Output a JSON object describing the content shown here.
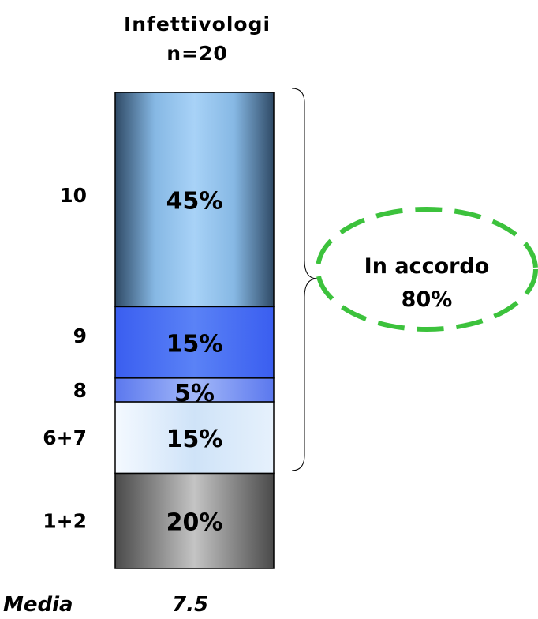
{
  "chart_data": {
    "type": "bar",
    "stacked": true,
    "title": "Infettivologi",
    "subtitle": "n=20",
    "categories": [
      "Infettivologi"
    ],
    "series": [
      {
        "name": "1+2",
        "values": [
          20
        ],
        "label": "20%",
        "color": "#8a8a8a"
      },
      {
        "name": "6+7",
        "values": [
          15
        ],
        "label": "15%",
        "color": "#d4e6f8"
      },
      {
        "name": "8",
        "values": [
          5
        ],
        "label": "5%",
        "color": "#6f8cf0"
      },
      {
        "name": "9",
        "values": [
          15
        ],
        "label": "15%",
        "color": "#4c72f2"
      },
      {
        "name": "10",
        "values": [
          45
        ],
        "label": "45%",
        "color": "#6f9fcc"
      }
    ],
    "ylim": [
      0,
      100
    ],
    "annotation": {
      "text_line1": "In accordo",
      "text_line2": "80%",
      "color": "#3cc23c"
    },
    "footer": {
      "label": "Media",
      "value": "7.5"
    }
  }
}
